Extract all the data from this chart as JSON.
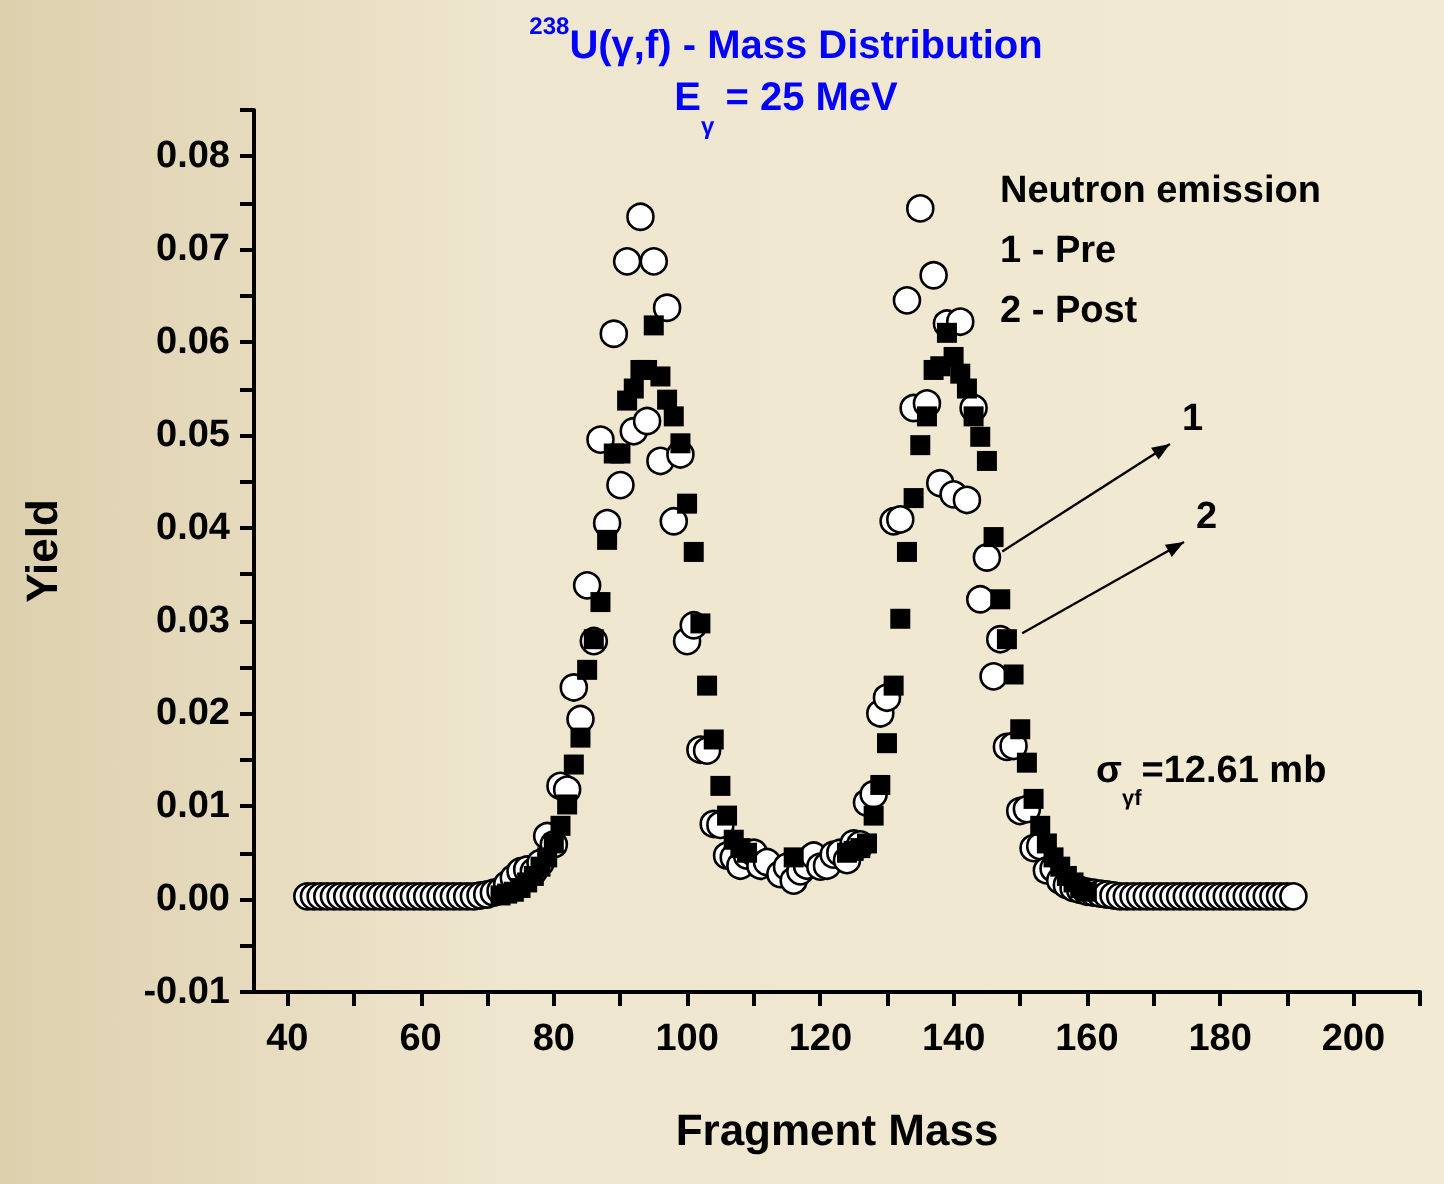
{
  "chart_data": {
    "type": "scatter",
    "title": "$^{238}$U(γ,f) - Mass Distribution",
    "subtitle": "E$_{γ}$ = 25 MeV",
    "xlabel": "Fragment Mass",
    "ylabel": "Yield",
    "xlim": [
      35,
      210
    ],
    "ylim": [
      -0.01,
      0.085
    ],
    "xticks": [
      40,
      {
        "value": 50,
        "label": null
      },
      60,
      {
        "value": 70,
        "label": null
      },
      80,
      {
        "value": 90,
        "label": null
      },
      100,
      {
        "value": 110,
        "label": null
      },
      120,
      {
        "value": 130,
        "label": null
      },
      140,
      {
        "value": 150,
        "label": null
      },
      160,
      {
        "value": 170,
        "label": null
      },
      180,
      {
        "value": 190,
        "label": null
      },
      200,
      {
        "value": 210,
        "label": null
      }
    ],
    "yticks": [
      -0.01,
      {
        "value": -0.005,
        "label": null
      },
      {
        "value": 0,
        "label": "0.00"
      },
      {
        "value": 0.005,
        "label": null
      },
      0.01,
      {
        "value": 0.015,
        "label": null
      },
      0.02,
      {
        "value": 0.025,
        "label": null
      },
      0.03,
      {
        "value": 0.035,
        "label": null
      },
      0.04,
      {
        "value": 0.045,
        "label": null
      },
      0.05,
      {
        "value": 0.055,
        "label": null
      },
      0.06,
      {
        "value": 0.065,
        "label": null
      },
      0.07,
      {
        "value": 0.075,
        "label": null
      },
      0.08,
      {
        "value": 0.085,
        "label": null
      }
    ],
    "grid": false,
    "annotations": [
      "Neutron emission",
      "1 - Pre",
      "2 - Post",
      {
        "text": "1",
        "x": 145.5,
        "y": 0.0368
      },
      {
        "text": "2",
        "x": 148.5,
        "y": 0.028
      },
      "σ$_{γf}$=12.61 mb"
    ],
    "series": [
      {
        "color": "#ffffff",
        "marker": "circle",
        "x": [
          43,
          44,
          45,
          46,
          47,
          48,
          49,
          50,
          51,
          52,
          53,
          54,
          55,
          56,
          57,
          58,
          59,
          60,
          61,
          62,
          63,
          64,
          65,
          66,
          67,
          68,
          69,
          70,
          71,
          72,
          73,
          74,
          75,
          76,
          77,
          78,
          79,
          80,
          81,
          82,
          83,
          84,
          85,
          86,
          87,
          88,
          89,
          90,
          91,
          92,
          93,
          94,
          95,
          96,
          97,
          98,
          99,
          100,
          101,
          102,
          103,
          104,
          105,
          106,
          107,
          108,
          109,
          110,
          111,
          112,
          113,
          114,
          115,
          116,
          117,
          118,
          119,
          120,
          121,
          122,
          123,
          124,
          125,
          126,
          127,
          128,
          129,
          130,
          131,
          132,
          133,
          134,
          135,
          136,
          137,
          138,
          139,
          140,
          141,
          142,
          143,
          144,
          145,
          146,
          147,
          148,
          149,
          150,
          151,
          152,
          153,
          154,
          155,
          156,
          157,
          158,
          159,
          160,
          161,
          162,
          163,
          164,
          165,
          166,
          167,
          168,
          169,
          170,
          171,
          172,
          173,
          174,
          175,
          176,
          177,
          178,
          179,
          180,
          181,
          182,
          183,
          184,
          185,
          186,
          187,
          188,
          189,
          190,
          191
        ],
        "values": [
          0.0003,
          0.0003,
          0.0003,
          0.0003,
          0.0003,
          0.0003,
          0.0003,
          0.0003,
          0.0003,
          0.0003,
          0.0003,
          0.0003,
          0.0003,
          0.0003,
          0.0003,
          0.0003,
          0.0003,
          0.0003,
          0.0003,
          0.0003,
          0.0003,
          0.0003,
          0.0003,
          0.0003,
          0.0003,
          0.0003,
          0.0004,
          0.0005,
          0.0007,
          0.0009,
          0.0016,
          0.0023,
          0.003,
          0.0032,
          0.003,
          0.0039,
          0.0068,
          0.0059,
          0.0122,
          0.0118,
          0.0228,
          0.0194,
          0.0338,
          0.0278,
          0.0495,
          0.0405,
          0.0609,
          0.0446,
          0.0687,
          0.0504,
          0.0735,
          0.0515,
          0.0687,
          0.0472,
          0.0637,
          0.0407,
          0.0479,
          0.0278,
          0.0295,
          0.0161,
          0.016,
          0.0081,
          0.008,
          0.0047,
          0.0045,
          0.0036,
          0.0047,
          0.005,
          0.0036,
          0.004,
          null,
          0.0027,
          0.0035,
          0.002,
          0.003,
          0.0036,
          0.0047,
          0.0035,
          0.0036,
          0.0048,
          0.005,
          0.0042,
          0.006,
          0.0059,
          0.0104,
          0.0113,
          0.02,
          0.0217,
          0.0407,
          0.0409,
          0.0645,
          0.0529,
          0.0744,
          0.0534,
          0.0672,
          0.0448,
          0.062,
          0.0436,
          0.0622,
          0.043,
          0.0529,
          0.0323,
          0.0368,
          0.024,
          0.028,
          0.0164,
          0.0165,
          0.0095,
          0.0097,
          0.0055,
          0.0057,
          0.0031,
          0.0033,
          0.002,
          0.0015,
          0.0012,
          0.001,
          0.0008,
          0.0007,
          0.0006,
          0.0005,
          0.0004,
          0.0003,
          0.0003,
          0.0003,
          0.0003,
          0.0003,
          0.0003,
          0.0003,
          0.0003,
          0.0003,
          0.0003,
          0.0003,
          0.0003,
          0.0003,
          0.0003,
          0.0003,
          0.0003,
          0.0003,
          0.0003,
          0.0003,
          0.0003,
          0.0003,
          0.0003,
          0.0003,
          0.0003,
          0.0003,
          0.0003,
          0.0003
        ]
      },
      {
        "color": "#000000",
        "marker": "square",
        "x": [
          72,
          73,
          74,
          75,
          76,
          77,
          78,
          79,
          80,
          81,
          82,
          83,
          84,
          85,
          86,
          87,
          88,
          89,
          90,
          91,
          92,
          93,
          94,
          95,
          96,
          97,
          98,
          99,
          100,
          101,
          102,
          103,
          104,
          105,
          106,
          107,
          108,
          109,
          110,
          111,
          112,
          113,
          114,
          115,
          116,
          117,
          118,
          119,
          120,
          121,
          122,
          123,
          124,
          125,
          126,
          127,
          128,
          129,
          130,
          131,
          132,
          133,
          134,
          135,
          136,
          137,
          138,
          139,
          140,
          141,
          142,
          143,
          144,
          145,
          146,
          147,
          148,
          149,
          150,
          151,
          152,
          153,
          154,
          155,
          156,
          157,
          158,
          159,
          160
        ],
        "values": [
          0.0004,
          0.0006,
          0.0008,
          0.0012,
          0.0018,
          0.0025,
          0.0035,
          0.0045,
          0.006,
          0.0079,
          0.0102,
          0.0145,
          0.0174,
          0.0247,
          0.028,
          0.032,
          0.0387,
          0.048,
          0.048,
          0.0537,
          0.055,
          0.057,
          0.057,
          0.0618,
          0.0563,
          0.0538,
          0.052,
          0.0491,
          0.0426,
          0.0374,
          0.0297,
          0.023,
          0.0172,
          0.0122,
          0.009,
          0.0064,
          0.0055,
          0.005,
          null,
          null,
          null,
          null,
          null,
          null,
          0.0045,
          null,
          null,
          null,
          null,
          null,
          null,
          null,
          0.005,
          0.0052,
          0.0055,
          0.006,
          0.009,
          0.0123,
          0.0168,
          0.023,
          0.0302,
          0.0374,
          0.0432,
          0.0489,
          0.052,
          0.057,
          0.0574,
          0.061,
          0.0584,
          0.0566,
          0.055,
          0.052,
          0.0498,
          0.0472,
          0.039,
          0.0323,
          0.028,
          0.0242,
          0.0183,
          0.0147,
          0.0108,
          0.0079,
          0.006,
          0.0045,
          0.0035,
          0.0025,
          0.0018,
          0.0012,
          0.0008
        ]
      }
    ]
  }
}
